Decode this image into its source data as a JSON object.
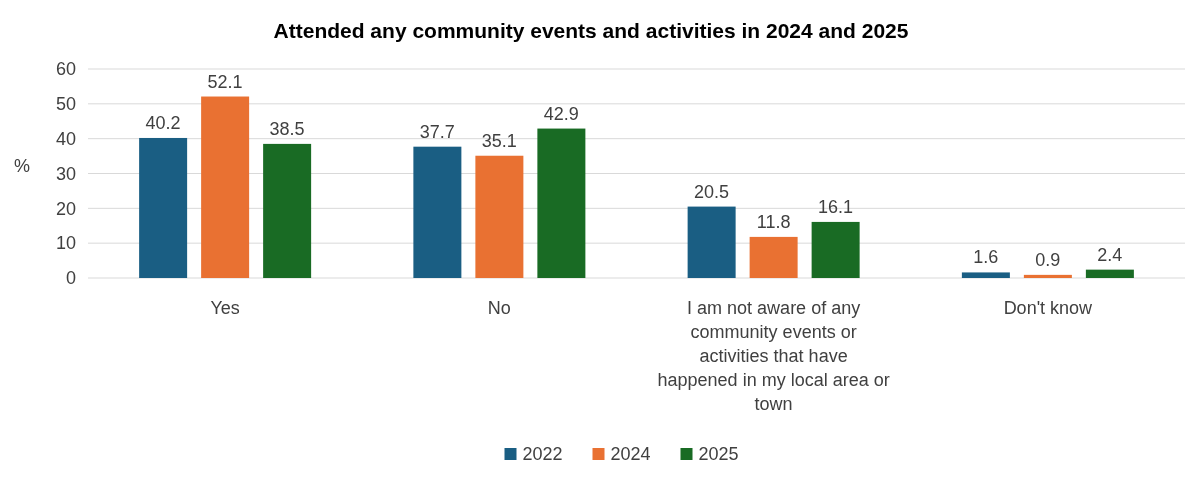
{
  "chart_data": {
    "type": "bar",
    "title": "Attended any community events and activities in 2024 and 2025",
    "ylabel": "%",
    "categories": [
      "Yes",
      "No",
      "I am not aware of any community events or activities that have happened in my local area or town",
      "Don't know"
    ],
    "series": [
      {
        "name": "2022",
        "color": "#1a5e83",
        "values": [
          40.2,
          37.7,
          20.5,
          1.6
        ]
      },
      {
        "name": "2024",
        "color": "#e97132",
        "values": [
          52.1,
          35.1,
          11.8,
          0.9
        ]
      },
      {
        "name": "2025",
        "color": "#196b24",
        "values": [
          38.5,
          42.9,
          16.1,
          2.4
        ]
      }
    ],
    "ylim": [
      0,
      60
    ],
    "yticks": [
      0,
      10,
      20,
      30,
      40,
      50,
      60
    ],
    "grid": "y",
    "legend": "bottom",
    "data_labels": true
  }
}
